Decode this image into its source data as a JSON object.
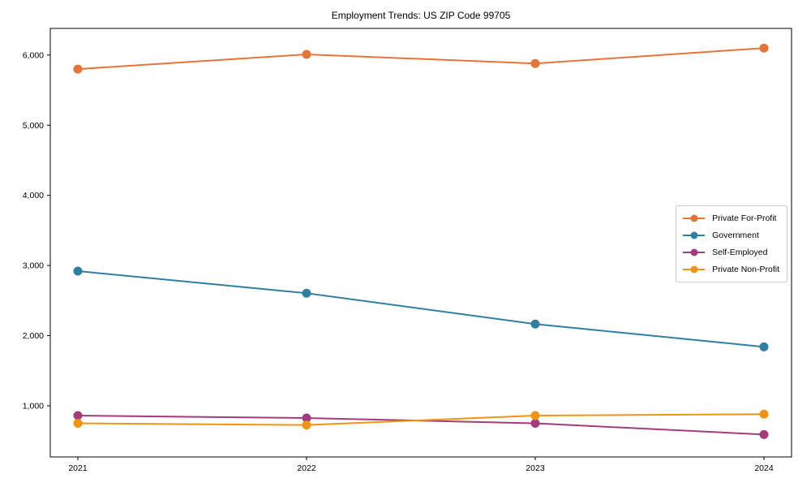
{
  "chart_data": {
    "type": "line",
    "title": "Employment Trends: US ZIP Code 99705",
    "xlabel": "",
    "ylabel": "",
    "categories": [
      "2021",
      "2022",
      "2023",
      "2024"
    ],
    "series": [
      {
        "name": "Private For-Profit",
        "color": "#e57439",
        "values": [
          5800,
          6010,
          5880,
          6100
        ]
      },
      {
        "name": "Government",
        "color": "#2f7fa0",
        "values": [
          2920,
          2605,
          2165,
          1840
        ]
      },
      {
        "name": "Self-Employed",
        "color": "#a23c7c",
        "values": [
          860,
          825,
          750,
          590
        ]
      },
      {
        "name": "Private Non-Profit",
        "color": "#ef9413",
        "values": [
          750,
          725,
          860,
          880
        ]
      }
    ],
    "yticks": [
      1000,
      2000,
      3000,
      4000,
      5000,
      6000
    ],
    "ytick_labels": [
      "1,000",
      "2,000",
      "3,000",
      "4,000",
      "5,000",
      "6,000"
    ],
    "ylim": [
      270,
      6380
    ],
    "grid": false,
    "legend_position": "center right",
    "marker": "circle",
    "marker_radius": 5.5,
    "line_width": 2,
    "axis_color": "#000000",
    "background_color": "#ffffff"
  }
}
